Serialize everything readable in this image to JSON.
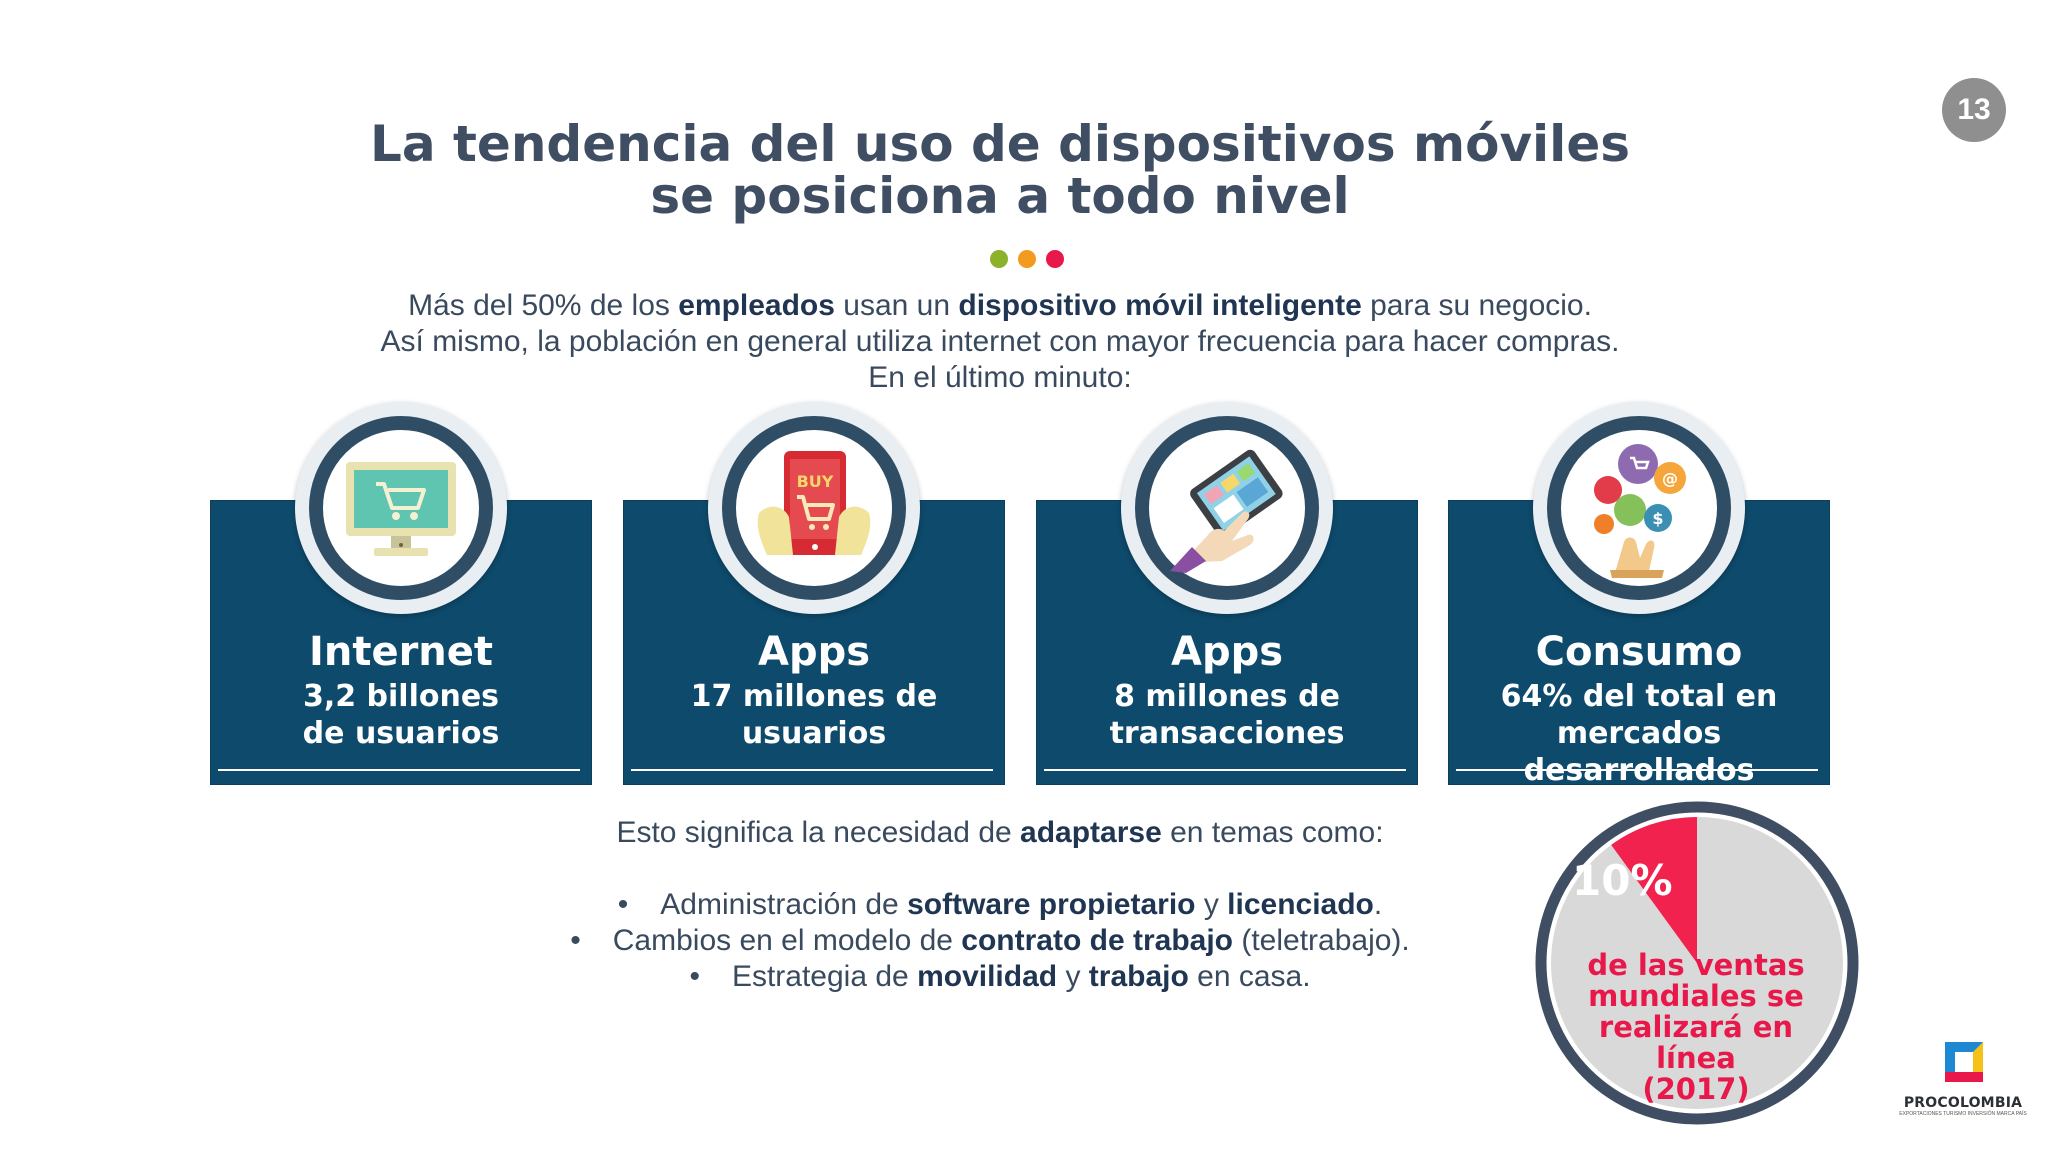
{
  "page_number": "13",
  "title": {
    "line1": "La tendencia del uso de dispositivos móviles",
    "line2": "se posiciona a todo nivel"
  },
  "dots": [
    "#8cb12a",
    "#f39b1f",
    "#e8184a"
  ],
  "intro": {
    "l1_a": "Más del 50% de los ",
    "l1_b": "empleados",
    "l1_c": " usan un ",
    "l1_d": "dispositivo móvil inteligente",
    "l1_e": " para  su negocio.",
    "l2": "Así mismo,  la población en general utiliza internet con mayor frecuencia para hacer compras.",
    "l3": "En el último minuto:"
  },
  "cards": [
    {
      "heading": "Internet",
      "line1": "3,2 billones",
      "line2": "de usuarios",
      "icon": "computer-cart-icon"
    },
    {
      "heading": "Apps",
      "line1": "17 millones de",
      "line2": "usuarios",
      "icon": "tablet-buy-icon"
    },
    {
      "heading": "Apps",
      "line1": "8 millones de",
      "line2": "transacciones",
      "icon": "hand-tablet-icon"
    },
    {
      "heading": "Consumo",
      "line1": "64% del total en",
      "line2": "mercados desarrollados",
      "icon": "consumer-bubbles-icon"
    }
  ],
  "adapt": {
    "a": "Esto significa la necesidad de ",
    "b": "adaptarse",
    "c": " en temas como:"
  },
  "bullets": [
    {
      "a": "Administración de ",
      "b": "software propietario",
      "c": " y ",
      "d": "licenciado",
      "e": "."
    },
    {
      "a": "Cambios en el modelo de ",
      "b": "contrato de trabajo",
      "c": " (teletrabajo).",
      "d": "",
      "e": ""
    },
    {
      "a": "Estrategia de ",
      "b": "movilidad",
      "c": " y ",
      "d": "trabajo",
      "e": " en casa."
    }
  ],
  "bullet_char": "•",
  "pie": {
    "value_percent": 10,
    "label": "10%",
    "line1": "de las ventas",
    "line2": "mundiales se",
    "line3": "realizará en línea",
    "line4": "(2017)",
    "highlight_color": "#f2224f",
    "rest_color": "#d9d9d9",
    "ring_color": "#3f4e63"
  },
  "logo": {
    "name": "PROCOLOMBIA",
    "tagline": "EXPORTACIONES TURISMO INVERSIÓN MARCA PAÍS"
  }
}
